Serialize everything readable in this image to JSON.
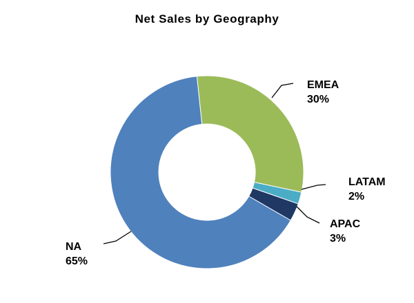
{
  "chart_data": {
    "type": "pie",
    "title": "Net Sales by Geography",
    "donut": true,
    "slices": [
      {
        "name": "EMEA",
        "value": 30,
        "label": "30%",
        "color": "#9BBB59"
      },
      {
        "name": "LATAM",
        "value": 2,
        "label": "2%",
        "color": "#4BACC6"
      },
      {
        "name": "APAC",
        "value": 3,
        "label": "3%",
        "color": "#1F3864"
      },
      {
        "name": "NA",
        "value": 65,
        "label": "65%",
        "color": "#4F81BD"
      }
    ]
  }
}
